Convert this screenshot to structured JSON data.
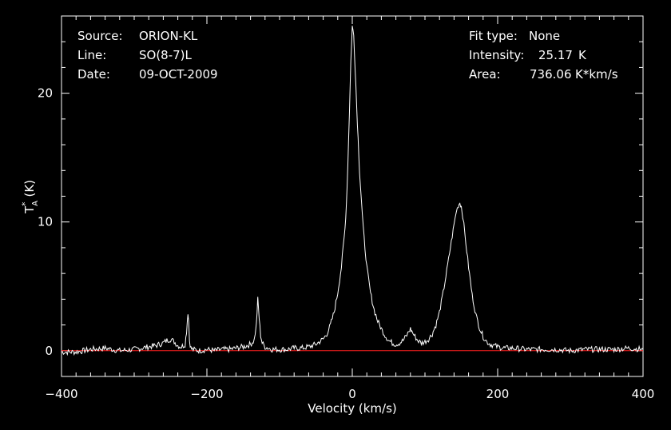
{
  "header_left": [
    {
      "key": "Source:",
      "value": "ORION-KL"
    },
    {
      "key": "Line:",
      "value": "SO(8-7)L"
    },
    {
      "key": "Date:",
      "value": "09-OCT-2009"
    }
  ],
  "header_right": [
    {
      "key": "Fit type:",
      "value": "None"
    },
    {
      "key": "Intensity:",
      "value": "25.17",
      "unit": "K"
    },
    {
      "key": "Area:",
      "value": "736.06",
      "unit": "K*km/s"
    }
  ],
  "colors": {
    "background": "#000000",
    "trace": "#ffffff",
    "baseline": "#ff2020"
  },
  "chart_data": {
    "type": "line",
    "xlabel": "Velocity (km/s)",
    "ylabel_main": "T",
    "ylabel_sup": "*",
    "ylabel_sub": "A",
    "ylabel_unit": "(K)",
    "xlim": [
      -400,
      400
    ],
    "ylim": [
      -2,
      26
    ],
    "xticks": [
      -400,
      -200,
      0,
      200,
      400
    ],
    "yticks": [
      0,
      10,
      20
    ],
    "baseline": 0,
    "series": [
      {
        "x": [
          -400,
          -380,
          -360,
          -340,
          -320,
          -300,
          -290,
          -280,
          -270,
          -260,
          -255,
          -250,
          -245,
          -240,
          -235,
          -230,
          -228,
          -226,
          -225,
          -224,
          -222,
          -220,
          -210,
          -200,
          -190,
          -180,
          -170,
          -160,
          -150,
          -140,
          -135,
          -132,
          -130,
          -128,
          -126,
          -124,
          -120,
          -115,
          -110,
          -100,
          -90,
          -80,
          -70,
          -60,
          -50,
          -40,
          -35,
          -30,
          -25,
          -20,
          -15,
          -10,
          -8,
          -6,
          -4,
          -2,
          0,
          2,
          4,
          6,
          8,
          10,
          15,
          20,
          25,
          30,
          35,
          40,
          45,
          50,
          55,
          60,
          65,
          70,
          75,
          78,
          80,
          82,
          85,
          90,
          95,
          100,
          105,
          110,
          115,
          120,
          125,
          130,
          135,
          140,
          143,
          146,
          148,
          150,
          152,
          155,
          160,
          165,
          170,
          175,
          180,
          185,
          190,
          195,
          200,
          210,
          220,
          240,
          260,
          280,
          300,
          320,
          340,
          360,
          380,
          400
        ],
        "y": [
          -0.1,
          -0.1,
          0.1,
          0.2,
          0.0,
          0.1,
          0.2,
          0.3,
          0.4,
          0.6,
          0.8,
          0.9,
          0.7,
          0.4,
          0.3,
          0.5,
          1.5,
          3.0,
          2.2,
          0.8,
          0.2,
          0.1,
          0.0,
          0.1,
          0.0,
          0.1,
          0.1,
          0.2,
          0.3,
          0.5,
          0.8,
          2.0,
          4.0,
          2.5,
          1.2,
          0.6,
          0.3,
          0.2,
          0.1,
          0.1,
          0.1,
          0.2,
          0.2,
          0.3,
          0.5,
          0.9,
          1.3,
          2.0,
          3.0,
          4.5,
          6.5,
          9.5,
          11.5,
          14.5,
          18.5,
          22.5,
          25.2,
          24.5,
          22.0,
          19.0,
          16.5,
          14.0,
          9.5,
          6.5,
          4.5,
          3.2,
          2.3,
          1.7,
          1.2,
          0.8,
          0.6,
          0.5,
          0.6,
          0.8,
          1.2,
          1.5,
          1.7,
          1.5,
          1.2,
          0.8,
          0.6,
          0.7,
          0.9,
          1.3,
          2.0,
          3.0,
          4.5,
          6.2,
          8.0,
          9.8,
          10.8,
          11.3,
          11.5,
          11.2,
          10.5,
          9.0,
          6.5,
          4.3,
          2.8,
          1.8,
          1.1,
          0.7,
          0.5,
          0.4,
          0.3,
          0.2,
          0.2,
          0.1,
          0.1,
          0.1,
          0.0,
          0.1,
          0.1,
          0.1,
          0.2,
          0.1
        ]
      }
    ]
  }
}
